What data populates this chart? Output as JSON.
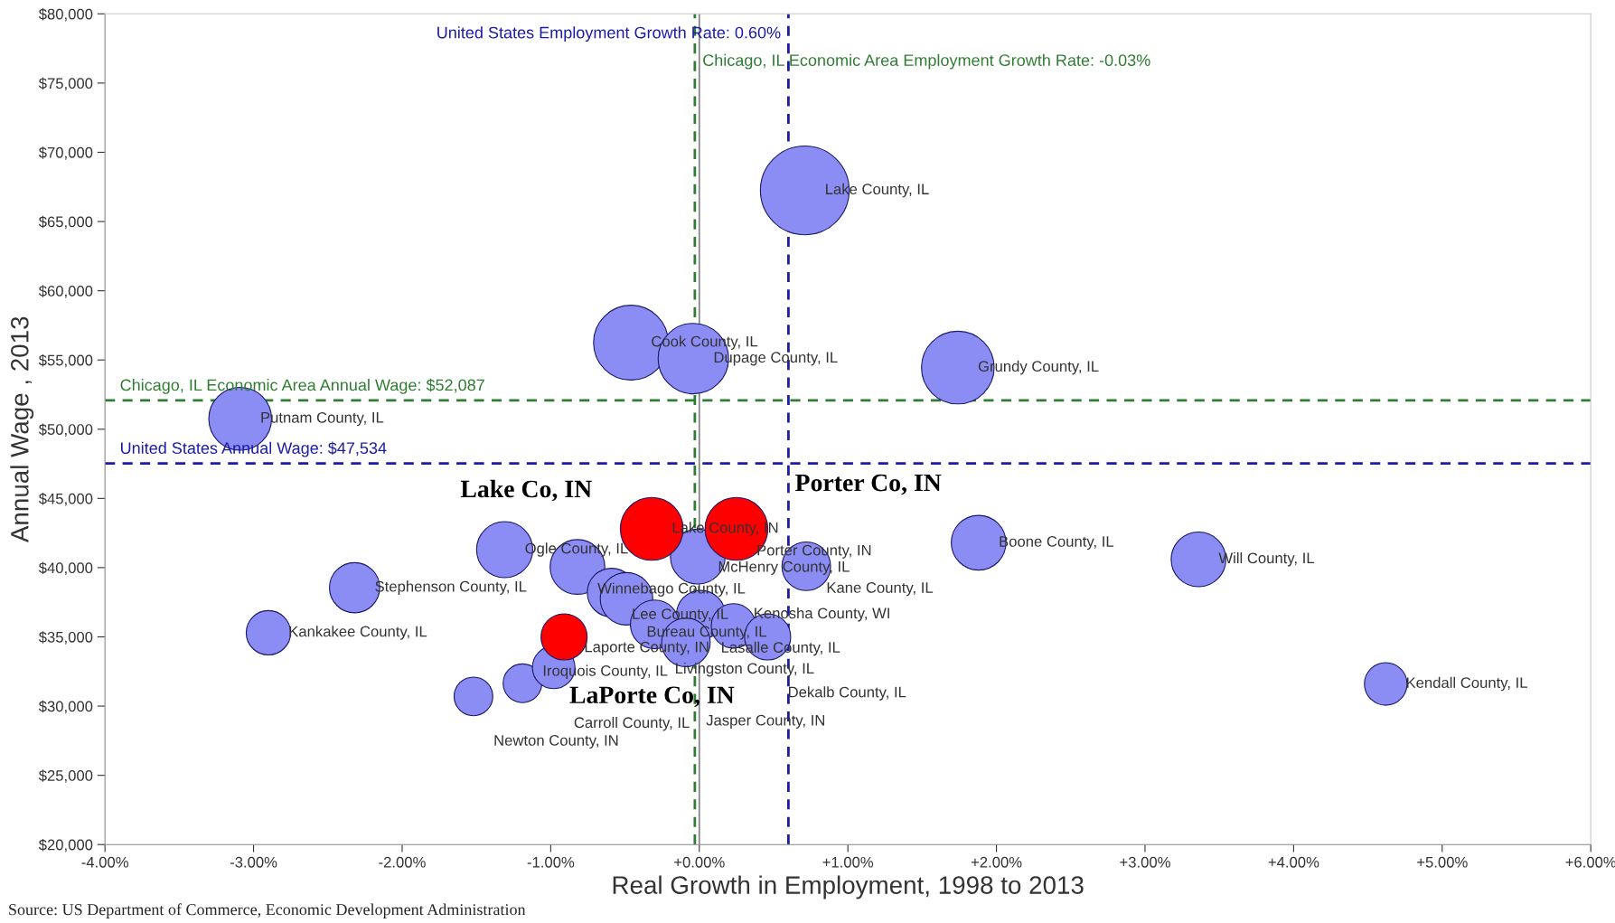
{
  "chart_data": {
    "type": "bubble",
    "xlabel": "Real Growth in Employment, 1998 to 2013",
    "ylabel": "Annual Wage , 2013",
    "xlim": [
      -4,
      6
    ],
    "xticks": [
      {
        "value": -4,
        "label": "-4.00%"
      },
      {
        "value": -3,
        "label": "-3.00%"
      },
      {
        "value": -2,
        "label": "-2.00%"
      },
      {
        "value": -1,
        "label": "-1.00%"
      },
      {
        "value": 0,
        "label": "+0.00%"
      },
      {
        "value": 1,
        "label": "+1.00%"
      },
      {
        "value": 2,
        "label": "+2.00%"
      },
      {
        "value": 3,
        "label": "+3.00%"
      },
      {
        "value": 4,
        "label": "+4.00%"
      },
      {
        "value": 5,
        "label": "+5.00%"
      },
      {
        "value": 6,
        "label": "+6.00%"
      }
    ],
    "ylim": [
      20000,
      80000
    ],
    "yticks": [
      {
        "value": 20000,
        "label": "$20,000"
      },
      {
        "value": 25000,
        "label": "$25,000"
      },
      {
        "value": 30000,
        "label": "$30,000"
      },
      {
        "value": 35000,
        "label": "$35,000"
      },
      {
        "value": 40000,
        "label": "$40,000"
      },
      {
        "value": 45000,
        "label": "$45,000"
      },
      {
        "value": 50000,
        "label": "$50,000"
      },
      {
        "value": 55000,
        "label": "$55,000"
      },
      {
        "value": 60000,
        "label": "$60,000"
      },
      {
        "value": 65000,
        "label": "$65,000"
      },
      {
        "value": 70000,
        "label": "$70,000"
      },
      {
        "value": 75000,
        "label": "$75,000"
      },
      {
        "value": 80000,
        "label": "$80,000"
      }
    ],
    "grid": false,
    "legend": false,
    "series": [
      {
        "color": "#8c8cf5",
        "x": [
          0.71,
          -0.46,
          -0.04,
          1.74,
          -3.09,
          -1.31,
          -2.32,
          -2.9,
          1.88,
          3.36,
          4.62,
          -1.52,
          -1.19,
          -0.98,
          -0.82,
          -0.59,
          -0.49,
          -0.01,
          0.72,
          0.01,
          -0.3,
          0.23,
          -0.09,
          0.46
        ],
        "values": [
          67250,
          56250,
          55100,
          54450,
          50750,
          41300,
          38550,
          35300,
          41800,
          40600,
          31600,
          30700,
          31650,
          32800,
          40050,
          38200,
          37750,
          40800,
          40100,
          36600,
          35900,
          35800,
          34600,
          35000
        ],
        "sizes": [
          1.0,
          0.71,
          0.63,
          0.67,
          0.5,
          0.4,
          0.32,
          0.25,
          0.38,
          0.38,
          0.23,
          0.19,
          0.19,
          0.23,
          0.38,
          0.3,
          0.35,
          0.38,
          0.3,
          0.3,
          0.3,
          0.25,
          0.3,
          0.27
        ],
        "value_labels": [
          "Lake County, IL",
          "Cook County, IL",
          "Dupage County, IL",
          "Grundy County, IL",
          "Putnam County, IL",
          "Ogle County, IL",
          "Stephenson County, IL",
          "Kankakee County, IL",
          "Boone County, IL",
          "Will County, IL",
          "Kendall County, IL",
          "Newton County, IN",
          "Iroquois County, IL",
          "Carroll County, IL",
          "Winnebago County, IL",
          "Lee County, IL",
          "Bureau County, IL",
          "McHenry County, IL",
          "Kane County, IL",
          "Lasalle County, IL",
          "Livingston County, IL",
          "Kenosha County, WI",
          "Jasper County, IN",
          "Dekalb County, IL"
        ]
      },
      {
        "color": "#ff0000",
        "x": [
          -0.32,
          0.25,
          -0.91
        ],
        "values": [
          42800,
          42800,
          35000
        ],
        "sizes": [
          0.5,
          0.5,
          0.27
        ],
        "value_labels": [
          "Lake County, IN",
          "Porter County, IN",
          "Laporte County, IN"
        ]
      }
    ],
    "ref_lines": [
      {
        "axis": "x",
        "value": 0,
        "color": "#808080",
        "line_style": "solid"
      },
      {
        "axis": "x",
        "value": -0.03,
        "label": "Chicago, IL Economic Area Employment Growth Rate: -0.03%",
        "color": "#2e7d32",
        "line_style": "dashed"
      },
      {
        "axis": "x",
        "value": 0.6,
        "label": "United States Employment Growth Rate: 0.60%",
        "color": "#1c1ca8",
        "line_style": "dashed"
      },
      {
        "axis": "y",
        "value": 52087,
        "label": "Chicago, IL Economic Area Annual Wage: $52,087",
        "color": "#2e7d32",
        "line_style": "dashed"
      },
      {
        "axis": "y",
        "value": 47534,
        "label": "United States Annual Wage: $47,534",
        "color": "#1c1ca8",
        "line_style": "dashed"
      }
    ],
    "annotations": [
      "Lake Co, IN",
      "Porter Co, IN",
      "LaPorte Co, IN",
      "Source: US Department of Commerce, Economic Development Administration"
    ]
  }
}
